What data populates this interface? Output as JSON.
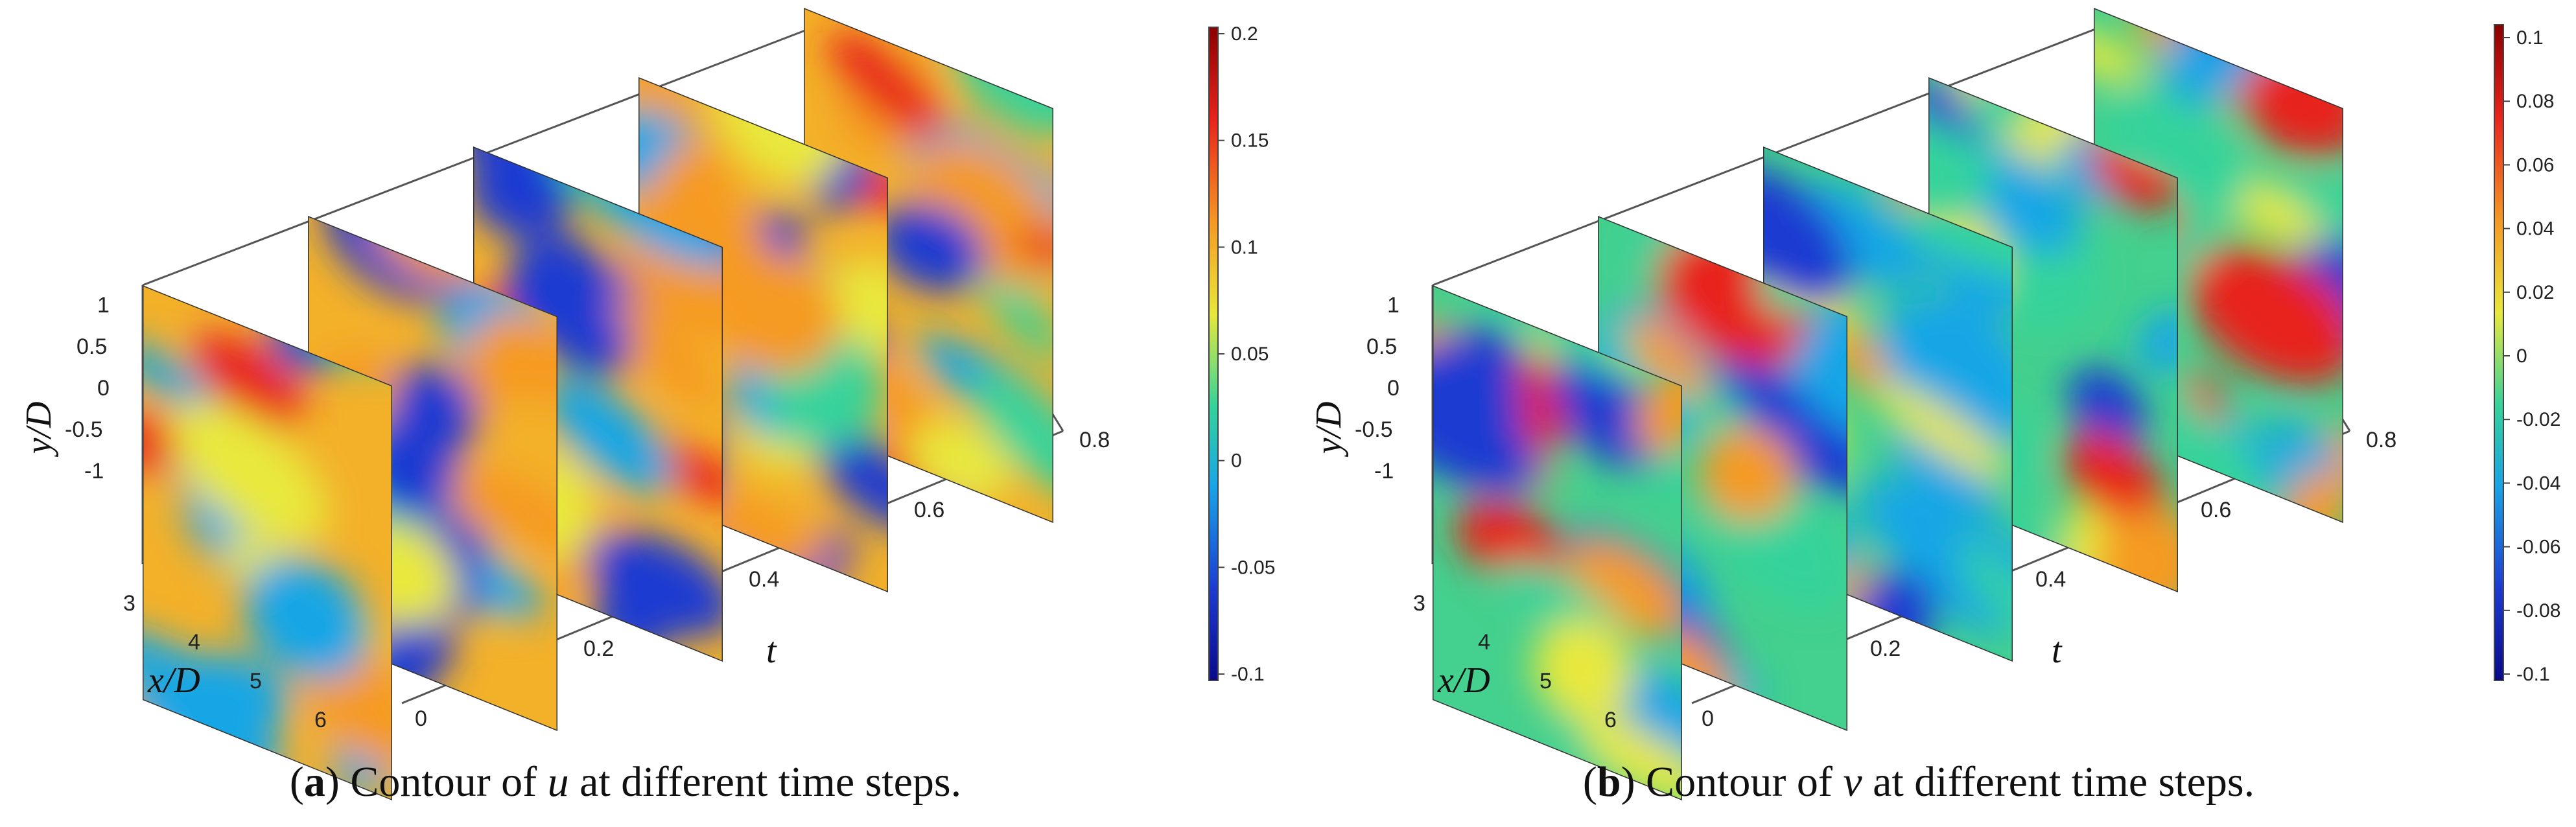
{
  "panels": [
    {
      "id": "a",
      "caption_letter": "a",
      "caption_parts": [
        "Contour of ",
        "u",
        " at different time steps."
      ],
      "y_axis_label": "y/D",
      "x_axis_label": "x/D",
      "t_axis_label": "t",
      "y_ticks": [
        "1",
        "0.5",
        "0",
        "-0.5",
        "-1"
      ],
      "x_ticks": [
        "3",
        "4",
        "5",
        "6"
      ],
      "t_ticks": [
        "0",
        "0.2",
        "0.4",
        "0.6",
        "0.8"
      ],
      "colorbar_ticks": [
        "0.2",
        "0.15",
        "0.1",
        "0.05",
        "0",
        "-0.05",
        "-0.1"
      ],
      "colorbar_colors": [
        "#8b0000",
        "#e8231c",
        "#f59a24",
        "#e8e83c",
        "#35d39b",
        "#19a6e6",
        "#1c3bd1",
        "#0a0a8a"
      ]
    },
    {
      "id": "b",
      "caption_letter": "b",
      "caption_parts": [
        "Contour of ",
        "v",
        " at different time steps."
      ],
      "y_axis_label": "y/D",
      "x_axis_label": "x/D",
      "t_axis_label": "t",
      "y_ticks": [
        "1",
        "0.5",
        "0",
        "-0.5",
        "-1"
      ],
      "x_ticks": [
        "3",
        "4",
        "5",
        "6"
      ],
      "t_ticks": [
        "0",
        "0.2",
        "0.4",
        "0.6",
        "0.8"
      ],
      "colorbar_ticks": [
        "0.1",
        "0.08",
        "0.06",
        "0.04",
        "0.02",
        "0",
        "-0.02",
        "-0.04",
        "-0.06",
        "-0.08",
        "-0.1"
      ],
      "colorbar_colors": [
        "#8b0000",
        "#e8231c",
        "#f59a24",
        "#e8e83c",
        "#35d39b",
        "#19a6e6",
        "#1c3bd1",
        "#0a0a8a"
      ]
    }
  ]
}
